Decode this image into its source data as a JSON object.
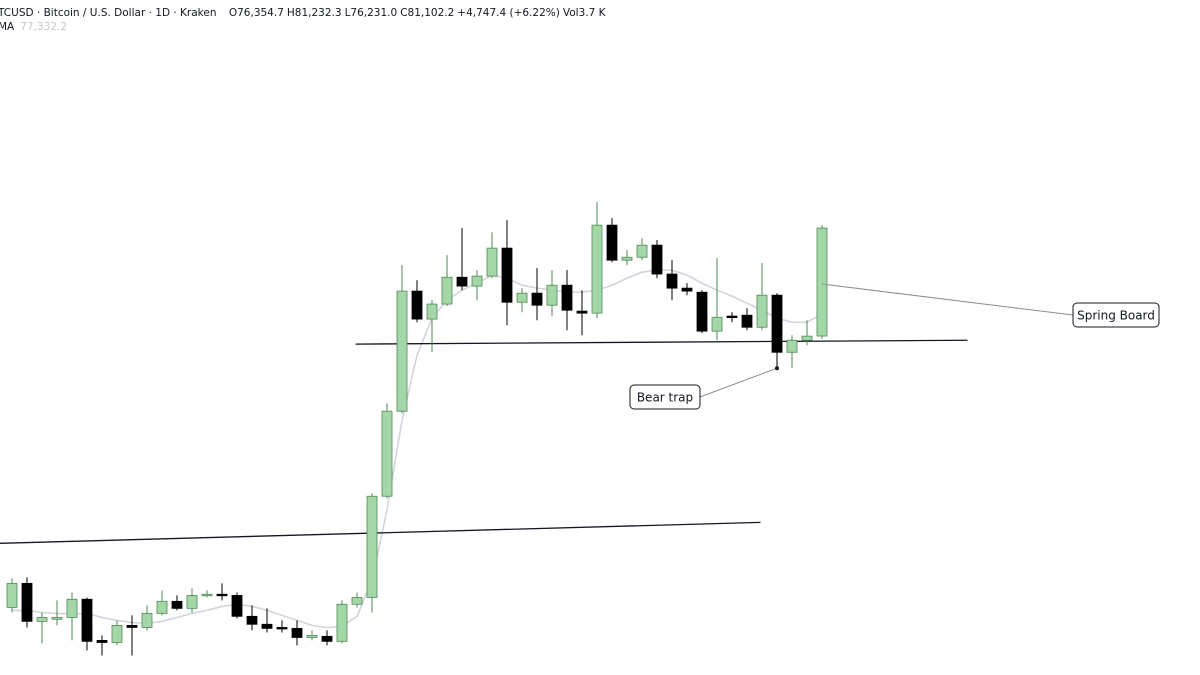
{
  "chart_data": {
    "type": "candlestick",
    "header": {
      "symbol": "TCUSD · Bitcoin / U.S. Dollar · 1D · Kraken",
      "items": [
        {
          "key": "O",
          "text": "76,354.7"
        },
        {
          "key": "H",
          "text": "81,232.3"
        },
        {
          "key": "L",
          "text": "76,231.0"
        },
        {
          "key": "C",
          "text": "81,102.2"
        }
      ],
      "change": "+4,747.4 (+6.22%)",
      "volume_key": "Vol",
      "volume": "3.7 K",
      "ma_name": "MA",
      "ma_value": "77,332.2"
    },
    "xlim": [
      -0.8,
      79.2
    ],
    "ylim": [
      61450,
      91130
    ],
    "up_color": "#a5d6a7",
    "up_border": "#4f8a55",
    "down_color": "#000000",
    "series": [
      {
        "open": [
          64420,
          65480,
          63810,
          63900,
          63980,
          64780,
          62970,
          62880,
          63630,
          63540,
          64160,
          64690,
          64380,
          64950,
          65000,
          64950,
          64030,
          63680,
          63540,
          63500,
          63100,
          63150,
          62930,
          64560,
          64860,
          69310,
          73050,
          78330,
          77100,
          77760,
          78940,
          78550,
          78990,
          80220,
          77840,
          78240,
          77710,
          78590,
          77450,
          77360,
          81230,
          79690,
          79820,
          80350,
          79080,
          78460,
          78280,
          76570,
          77230,
          77270,
          76740,
          78150,
          75640,
          76170,
          76354.7
        ],
        "high": [
          65700,
          65740,
          64200,
          64730,
          65080,
          64860,
          63190,
          63850,
          64070,
          64510,
          65170,
          64950,
          65260,
          65170,
          65480,
          65080,
          64510,
          64380,
          63850,
          63850,
          63410,
          63410,
          64730,
          65080,
          69440,
          73400,
          79470,
          78810,
          77930,
          79910,
          81100,
          79250,
          80920,
          81450,
          78460,
          79340,
          79250,
          79250,
          78370,
          82240,
          81540,
          80130,
          80660,
          80570,
          79690,
          78680,
          78370,
          79780,
          77400,
          77580,
          79560,
          78240,
          76390,
          77050,
          81232.3
        ],
        "low": [
          64200,
          63540,
          62840,
          63630,
          62970,
          62530,
          62310,
          62750,
          62310,
          63410,
          64070,
          64290,
          64200,
          64860,
          64730,
          63940,
          63410,
          63320,
          63320,
          62750,
          62970,
          62750,
          62840,
          64420,
          64200,
          69220,
          72960,
          76960,
          75640,
          77670,
          78370,
          77930,
          78900,
          76830,
          77400,
          77050,
          77230,
          76610,
          76390,
          77140,
          79600,
          79470,
          79690,
          78900,
          77930,
          78150,
          76480,
          76170,
          76960,
          76610,
          76610,
          74940,
          74940,
          75950,
          76231.0
        ],
        "close": [
          65480,
          63810,
          63980,
          63980,
          64780,
          62930,
          62880,
          63630,
          63540,
          64160,
          64690,
          64380,
          64950,
          65000,
          64950,
          64030,
          63680,
          63500,
          63500,
          63100,
          63190,
          62930,
          64560,
          64860,
          69310,
          73050,
          78330,
          77100,
          77760,
          78940,
          78550,
          78990,
          80220,
          77840,
          78240,
          77710,
          78590,
          77490,
          77360,
          81230,
          79690,
          79820,
          80350,
          79080,
          78460,
          78330,
          76570,
          77180,
          77180,
          76740,
          78150,
          75640,
          76170,
          76350,
          81102.2
        ]
      }
    ],
    "sma": {
      "color": "#d1d4dc",
      "values": [
        64290,
        64290,
        64200,
        64160,
        64120,
        64160,
        63980,
        63850,
        63760,
        63720,
        63810,
        63980,
        64160,
        64290,
        64470,
        64560,
        64470,
        64290,
        64070,
        63850,
        63630,
        63540,
        63590,
        64030,
        65610,
        68690,
        72650,
        75510,
        77140,
        77930,
        78370,
        78680,
        79030,
        78900,
        78590,
        78460,
        78370,
        78280,
        78280,
        78370,
        78590,
        78900,
        79160,
        79250,
        79250,
        79030,
        78680,
        78370,
        78110,
        77800,
        77490,
        77140,
        76960,
        76960,
        77332.2
      ]
    },
    "trendlines": [
      {
        "x": [
          22.9,
          63.7
        ],
        "y": [
          76000,
          76170
        ]
      },
      {
        "x": [
          -0.8,
          49.9
        ],
        "y": [
          67240,
          68160
        ]
      }
    ],
    "annotations": [
      {
        "text": "Bear trap",
        "x": 51,
        "y": 74940
      },
      {
        "text": "Spring Board",
        "x": 54,
        "y": 78640
      }
    ]
  }
}
